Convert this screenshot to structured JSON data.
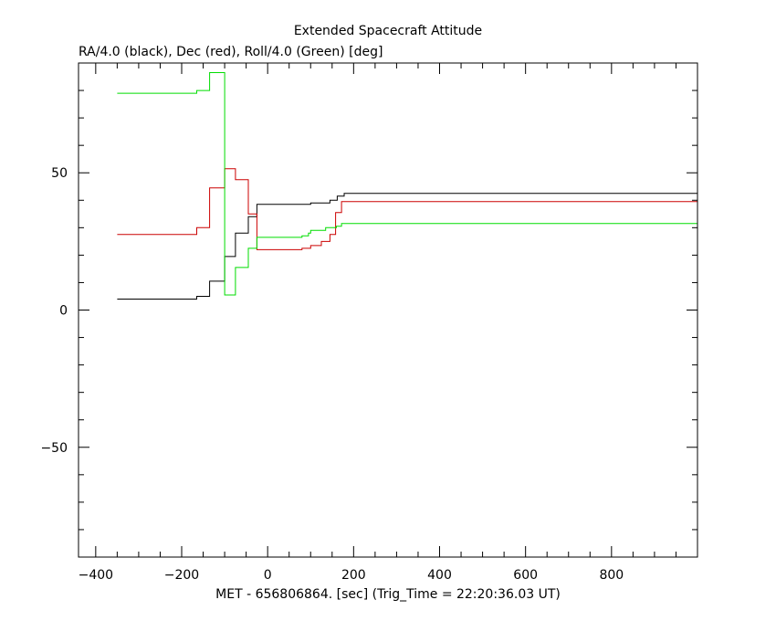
{
  "chart_data": {
    "type": "line",
    "title": "Extended Spacecraft Attitude",
    "subtitle": "RA/4.0 (black), Dec (red), Roll/4.0 (Green) [deg]",
    "xlabel": "MET - 656806864. [sec] (Trig_Time = 22:20:36.03 UT)",
    "ylabel": "",
    "xlim": [
      -440,
      1000
    ],
    "ylim": [
      -90,
      90
    ],
    "x_ticks": [
      -400,
      -200,
      0,
      200,
      400,
      600,
      800
    ],
    "x_tick_labels": [
      "−400",
      "−200",
      "0",
      "200",
      "400",
      "600",
      "800"
    ],
    "y_ticks": [
      -50,
      0,
      50
    ],
    "y_tick_labels": [
      "−50",
      "0",
      "50"
    ],
    "x_minor_step": 50,
    "y_minor_step": 10,
    "grid": false,
    "series": [
      {
        "color": "#000000",
        "step": true,
        "points": [
          [
            -350,
            4
          ],
          [
            -170,
            4
          ],
          [
            -165,
            5
          ],
          [
            -140,
            5
          ],
          [
            -135,
            10.5
          ],
          [
            -105,
            10.5
          ],
          [
            -100,
            19.5
          ],
          [
            -80,
            19.5
          ],
          [
            -75,
            28
          ],
          [
            -50,
            28
          ],
          [
            -45,
            34
          ],
          [
            -30,
            34
          ],
          [
            -25,
            38.5
          ],
          [
            70,
            38.5
          ],
          [
            80,
            38.5
          ],
          [
            100,
            39
          ],
          [
            140,
            39
          ],
          [
            145,
            40
          ],
          [
            158,
            40
          ],
          [
            162,
            41.5
          ],
          [
            172,
            41.5
          ],
          [
            178,
            42.5
          ],
          [
            1000,
            42.5
          ]
        ]
      },
      {
        "color": "#cc0000",
        "step": true,
        "points": [
          [
            -350,
            27.5
          ],
          [
            -170,
            27.5
          ],
          [
            -165,
            30
          ],
          [
            -140,
            30
          ],
          [
            -135,
            44.5
          ],
          [
            -105,
            44.5
          ],
          [
            -100,
            51.5
          ],
          [
            -80,
            51.5
          ],
          [
            -75,
            47.5
          ],
          [
            -50,
            47.5
          ],
          [
            -45,
            35
          ],
          [
            -30,
            35
          ],
          [
            -25,
            22
          ],
          [
            70,
            22
          ],
          [
            80,
            22.5
          ],
          [
            100,
            23.5
          ],
          [
            120,
            23.5
          ],
          [
            125,
            25
          ],
          [
            140,
            25
          ],
          [
            145,
            27.5
          ],
          [
            155,
            27.5
          ],
          [
            158,
            35.5
          ],
          [
            168,
            35.5
          ],
          [
            172,
            39.5
          ],
          [
            1000,
            39.5
          ]
        ]
      },
      {
        "color": "#00dd00",
        "step": true,
        "points": [
          [
            -350,
            79
          ],
          [
            -170,
            79
          ],
          [
            -165,
            80
          ],
          [
            -140,
            80
          ],
          [
            -135,
            86.5
          ],
          [
            -105,
            86.5
          ],
          [
            -100,
            5.5
          ],
          [
            -80,
            5.5
          ],
          [
            -75,
            15.5
          ],
          [
            -50,
            15.5
          ],
          [
            -45,
            22.5
          ],
          [
            -30,
            22.5
          ],
          [
            -25,
            26.5
          ],
          [
            70,
            26.5
          ],
          [
            80,
            27
          ],
          [
            95,
            28
          ],
          [
            100,
            29
          ],
          [
            130,
            29
          ],
          [
            135,
            30
          ],
          [
            155,
            30
          ],
          [
            160,
            30.5
          ],
          [
            168,
            30.5
          ],
          [
            172,
            31.5
          ],
          [
            1000,
            31.5
          ]
        ]
      }
    ]
  }
}
